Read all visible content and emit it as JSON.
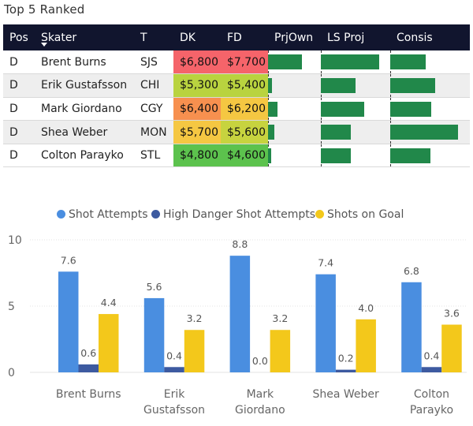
{
  "title": "Top 5 Ranked",
  "table": {
    "headers": {
      "pos": "Pos",
      "skater": "Skater",
      "team": "T",
      "dk": "DK",
      "fd": "FD",
      "prjown": "PrjOwn",
      "lsproj": "LS Proj",
      "consis": "Consis"
    },
    "rows": [
      {
        "pos": "D",
        "skater": "Brent Burns",
        "team": "SJS",
        "dk": "$6,800",
        "fd": "$7,700",
        "prjown": 0.8,
        "lsproj": 0.93,
        "consis": 0.52
      },
      {
        "pos": "D",
        "skater": "Erik Gustafsson",
        "team": "CHI",
        "dk": "$5,300",
        "fd": "$5,400",
        "prjown": 0.09,
        "lsproj": 0.55,
        "consis": 0.66
      },
      {
        "pos": "D",
        "skater": "Mark Giordano",
        "team": "CGY",
        "dk": "$6,400",
        "fd": "$6,200",
        "prjown": 0.22,
        "lsproj": 0.69,
        "consis": 0.6
      },
      {
        "pos": "D",
        "skater": "Shea Weber",
        "team": "MON",
        "dk": "$5,700",
        "fd": "$5,600",
        "prjown": 0.14,
        "lsproj": 0.48,
        "consis": 1.0
      },
      {
        "pos": "D",
        "skater": "Colton Parayko",
        "team": "STL",
        "dk": "$4,800",
        "fd": "$4,600",
        "prjown": 0.06,
        "lsproj": 0.47,
        "consis": 0.59
      }
    ],
    "dk_colors": [
      "#f5646a",
      "#b9d33f",
      "#f7904f",
      "#f5c742",
      "#5cc24d"
    ],
    "fd_colors": [
      "#f5646a",
      "#b9d33f",
      "#f5c742",
      "#c7d33f",
      "#5cc24d"
    ],
    "bar_color": "#21884a"
  },
  "chart_data": {
    "type": "bar",
    "categories": [
      "Brent Burns",
      "Erik Gustafsson",
      "Mark Giordano",
      "Shea Weber",
      "Colton Parayko"
    ],
    "category_lines": [
      [
        "Brent Burns"
      ],
      [
        "Erik",
        "Gustafsson"
      ],
      [
        "Mark",
        "Giordano"
      ],
      [
        "Shea Weber"
      ],
      [
        "Colton",
        "Parayko"
      ]
    ],
    "series": [
      {
        "name": "Shot Attempts",
        "color": "#4a8ee0",
        "values": [
          7.6,
          5.6,
          8.8,
          7.4,
          6.8
        ],
        "labels": [
          "7.6",
          "5.6",
          "8.8",
          "7.4",
          "6.8"
        ]
      },
      {
        "name": "High Danger Shot Attempts",
        "color": "#3d5aa0",
        "values": [
          0.6,
          0.4,
          0.0,
          0.2,
          0.4
        ],
        "labels": [
          "0.6",
          "0.4",
          "0.0",
          "0.2",
          "0.4"
        ]
      },
      {
        "name": "Shots on Goal",
        "color": "#f3c81b",
        "values": [
          4.4,
          3.2,
          3.2,
          4.0,
          3.6
        ],
        "labels": [
          "4.4",
          "3.2",
          "3.2",
          "4.0",
          "3.6"
        ]
      }
    ],
    "ylim": [
      0,
      10
    ],
    "yticks": [
      0,
      5,
      10
    ],
    "ytick_labels": [
      "0",
      "5",
      "10"
    ],
    "grid": true,
    "legend": "top-center"
  }
}
